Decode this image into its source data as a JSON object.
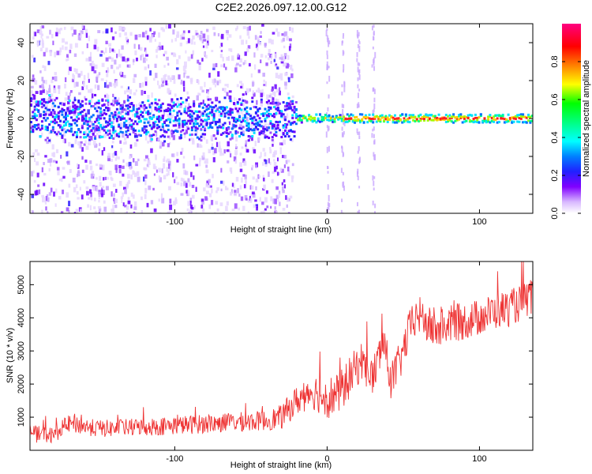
{
  "title": "C2E2.2026.097.12.00.G12",
  "chart_data": [
    {
      "type": "heatmap",
      "xlabel": "Height of straight line (km)",
      "ylabel": "Frequency (Hz)",
      "xlim": [
        -195,
        135
      ],
      "ylim": [
        -50,
        50
      ],
      "x_ticks": [
        -100,
        0,
        100
      ],
      "y_ticks": [
        -40,
        -20,
        0,
        20,
        40
      ],
      "x_tick_labels": [
        "-100",
        "0",
        "100"
      ],
      "y_tick_labels": [
        "-40",
        "-20",
        "0",
        "20",
        "40"
      ],
      "colorbar": {
        "label": "Normalized spectral amplitude",
        "range": [
          0,
          1
        ],
        "ticks": [
          0.0,
          0.2,
          0.4,
          0.6,
          0.8
        ],
        "tick_labels": [
          "0.0",
          "0.2",
          "0.4",
          "0.6",
          "0.8"
        ]
      },
      "ridge_description": "signal concentrated near 0 Hz; diffuse noise for heights below about -20 km, strong narrow band above"
    },
    {
      "type": "line",
      "xlabel": "Height of straight line (km)",
      "ylabel": "SNR (10 * v/v)",
      "xlim": [
        -195,
        135
      ],
      "ylim": [
        0,
        5700
      ],
      "x_ticks": [
        -100,
        0,
        100
      ],
      "y_ticks": [
        1000,
        2000,
        3000,
        4000,
        5000
      ],
      "x_tick_labels": [
        "-100",
        "0",
        "100"
      ],
      "y_tick_labels": [
        "1000",
        "2000",
        "3000",
        "4000",
        "5000"
      ],
      "color": "#ee3333",
      "trend": {
        "x": [
          -195,
          -180,
          -170,
          -150,
          -120,
          -100,
          -80,
          -60,
          -40,
          -30,
          -20,
          -10,
          0,
          8,
          15,
          22,
          30,
          37,
          42,
          48,
          55,
          60,
          70,
          80,
          90,
          100,
          110,
          120,
          130,
          135
        ],
        "y": [
          500,
          450,
          800,
          650,
          700,
          750,
          800,
          850,
          900,
          1000,
          1500,
          1800,
          1600,
          1700,
          2200,
          2700,
          2200,
          3300,
          2100,
          2700,
          3800,
          4100,
          3600,
          3800,
          3900,
          4000,
          4200,
          4300,
          4500,
          4700
        ]
      },
      "noise_amplitude": {
        "x": [
          -195,
          -40,
          -20,
          0,
          30,
          135
        ],
        "y": [
          250,
          300,
          450,
          650,
          600,
          550
        ]
      }
    }
  ]
}
